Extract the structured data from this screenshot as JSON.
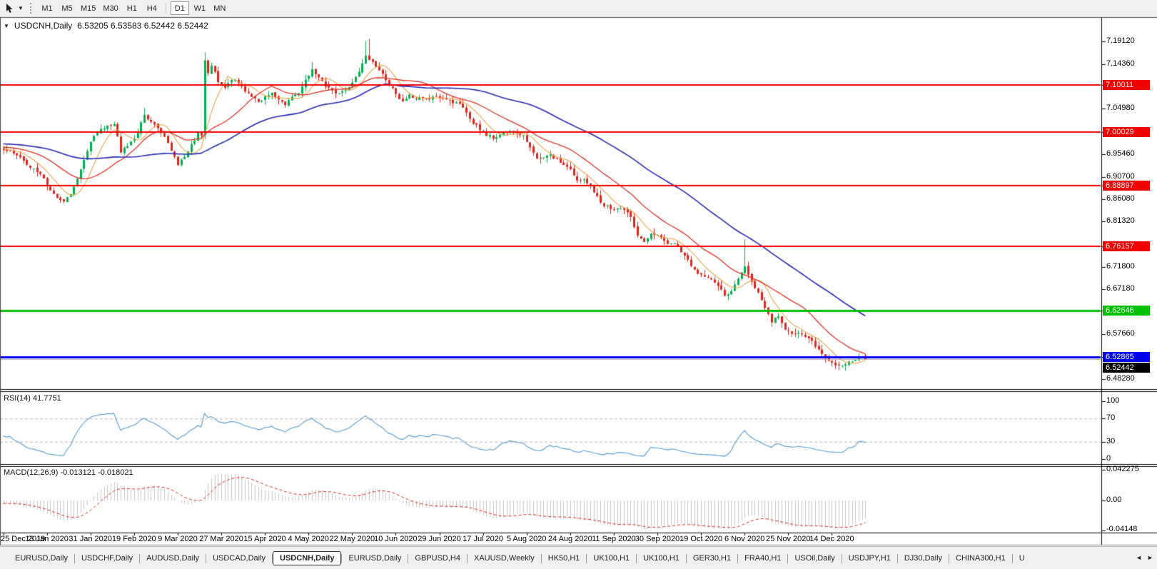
{
  "toolbar": {
    "dropdown_glyph": "▼",
    "timeframes": [
      "M1",
      "M5",
      "M15",
      "M30",
      "H1",
      "H4",
      "D1",
      "W1",
      "MN"
    ],
    "active_timeframe": "D1",
    "separator_after": "H4"
  },
  "chart": {
    "dropdown_glyph": "▼",
    "title_symbol": "USDCNH,Daily",
    "title_ohlc": "6.53205 6.53583 6.52442 6.52442"
  },
  "chart_data": {
    "type": "candlestick",
    "symbol": "USDCNH",
    "timeframe": "Daily",
    "ohlc_display": {
      "open": "6.53205",
      "high": "6.53583",
      "low": "6.52442",
      "close": "6.52442"
    },
    "price_axis": {
      "ticks": [
        {
          "v": 7.1912,
          "label": "7.19120"
        },
        {
          "v": 7.1436,
          "label": "7.14360"
        },
        {
          "v": 7.0498,
          "label": "7.04980"
        },
        {
          "v": 6.9546,
          "label": "6.95460"
        },
        {
          "v": 6.907,
          "label": "6.90700"
        },
        {
          "v": 6.8608,
          "label": "6.86080"
        },
        {
          "v": 6.8132,
          "label": "6.81320"
        },
        {
          "v": 6.718,
          "label": "6.71800"
        },
        {
          "v": 6.6718,
          "label": "6.67180"
        },
        {
          "v": 6.5766,
          "label": "6.57660"
        },
        {
          "v": 6.4828,
          "label": "6.48280"
        }
      ]
    },
    "hlines": [
      {
        "v": 7.10011,
        "label": "7.10011",
        "color": "#f20000",
        "lw": 2
      },
      {
        "v": 7.00029,
        "label": "7.00029",
        "color": "#f20000",
        "lw": 2
      },
      {
        "v": 6.88897,
        "label": "6.88897",
        "color": "#f20000",
        "lw": 2
      },
      {
        "v": 6.76157,
        "label": "6.76157",
        "color": "#f20000",
        "lw": 2
      },
      {
        "v": 6.62646,
        "label": "6.62646",
        "color": "#00c100",
        "lw": 3
      },
      {
        "v": 6.52865,
        "label": "6.52865",
        "color": "#0000f0",
        "lw": 3
      }
    ],
    "current_price": {
      "v": 6.52442,
      "label": "6.52442",
      "line_color": "#b4b4b4",
      "bg": "#000000"
    },
    "last_candle": {
      "o": 6.53205,
      "h": 6.53583,
      "l": 6.52442,
      "c": 6.52442
    },
    "dates": [
      "25 Dec 2019",
      "13 Jan 2020",
      "31 Jan 2020",
      "19 Feb 2020",
      "9 Mar 2020",
      "27 Mar 2020",
      "15 Apr 2020",
      "4 May 2020",
      "22 May 2020",
      "10 Jun 2020",
      "29 Jun 2020",
      "17 Jul 2020",
      "5 Aug 2020",
      "24 Aug 2020",
      "11 Sep 2020",
      "30 Sep 2020",
      "19 Oct 2020",
      "6 Nov 2020",
      "25 Nov 2020",
      "14 Dec 2020"
    ],
    "anchors": [
      [
        0,
        6.966
      ],
      [
        3,
        6.958
      ],
      [
        6,
        6.94
      ],
      [
        9,
        6.922
      ],
      [
        12,
        6.9
      ],
      [
        15,
        6.868
      ],
      [
        18,
        6.85
      ],
      [
        20,
        6.872
      ],
      [
        22,
        6.908
      ],
      [
        24,
        6.942
      ],
      [
        26,
        6.98
      ],
      [
        28,
        6.996
      ],
      [
        31,
        7.012
      ],
      [
        33,
        7.018
      ],
      [
        35,
        6.96
      ],
      [
        38,
        6.976
      ],
      [
        40,
        7.0
      ],
      [
        42,
        7.04
      ],
      [
        44,
        7.028
      ],
      [
        46,
        7.012
      ],
      [
        48,
        6.996
      ],
      [
        50,
        6.966
      ],
      [
        52,
        6.934
      ],
      [
        54,
        6.946
      ],
      [
        56,
        6.972
      ],
      [
        58,
        7.0
      ],
      [
        59,
        6.995
      ],
      [
        60,
        7.148
      ],
      [
        61,
        7.12
      ],
      [
        62,
        7.142
      ],
      [
        64,
        7.108
      ],
      [
        66,
        7.092
      ],
      [
        68,
        7.112
      ],
      [
        70,
        7.1
      ],
      [
        72,
        7.082
      ],
      [
        74,
        7.07
      ],
      [
        76,
        7.062
      ],
      [
        78,
        7.072
      ],
      [
        80,
        7.08
      ],
      [
        82,
        7.072
      ],
      [
        84,
        7.064
      ],
      [
        86,
        7.072
      ],
      [
        88,
        7.082
      ],
      [
        90,
        7.108
      ],
      [
        92,
        7.128
      ],
      [
        94,
        7.12
      ],
      [
        96,
        7.1
      ],
      [
        98,
        7.088
      ],
      [
        100,
        7.082
      ],
      [
        102,
        7.094
      ],
      [
        104,
        7.104
      ],
      [
        106,
        7.128
      ],
      [
        108,
        7.162
      ],
      [
        109,
        7.152
      ],
      [
        111,
        7.138
      ],
      [
        113,
        7.125
      ],
      [
        115,
        7.094
      ],
      [
        117,
        7.08
      ],
      [
        119,
        7.066
      ],
      [
        121,
        7.08
      ],
      [
        123,
        7.075
      ],
      [
        125,
        7.07
      ],
      [
        127,
        7.066
      ],
      [
        129,
        7.075
      ],
      [
        131,
        7.078
      ],
      [
        133,
        7.07
      ],
      [
        135,
        7.062
      ],
      [
        137,
        7.052
      ],
      [
        139,
        7.032
      ],
      [
        141,
        7.016
      ],
      [
        143,
        7.002
      ],
      [
        145,
        6.994
      ],
      [
        147,
        6.988
      ],
      [
        149,
        6.992
      ],
      [
        151,
        6.999
      ],
      [
        153,
        7.003
      ],
      [
        155,
        6.996
      ],
      [
        157,
        6.975
      ],
      [
        159,
        6.95
      ],
      [
        161,
        6.954
      ],
      [
        163,
        6.95
      ],
      [
        165,
        6.944
      ],
      [
        167,
        6.93
      ],
      [
        169,
        6.918
      ],
      [
        171,
        6.905
      ],
      [
        173,
        6.898
      ],
      [
        175,
        6.89
      ],
      [
        177,
        6.868
      ],
      [
        179,
        6.846
      ],
      [
        181,
        6.84
      ],
      [
        183,
        6.844
      ],
      [
        185,
        6.832
      ],
      [
        187,
        6.82
      ],
      [
        189,
        6.78
      ],
      [
        191,
        6.772
      ],
      [
        193,
        6.786
      ],
      [
        195,
        6.79
      ],
      [
        197,
        6.78
      ],
      [
        199,
        6.768
      ],
      [
        201,
        6.758
      ],
      [
        203,
        6.74
      ],
      [
        205,
        6.722
      ],
      [
        207,
        6.704
      ],
      [
        209,
        6.696
      ],
      [
        211,
        6.686
      ],
      [
        213,
        6.672
      ],
      [
        215,
        6.656
      ],
      [
        217,
        6.662
      ],
      [
        219,
        6.692
      ],
      [
        221,
        6.712
      ],
      [
        223,
        6.68
      ],
      [
        225,
        6.66
      ],
      [
        227,
        6.63
      ],
      [
        229,
        6.604
      ],
      [
        231,
        6.614
      ],
      [
        233,
        6.59
      ],
      [
        235,
        6.574
      ],
      [
        237,
        6.582
      ],
      [
        239,
        6.576
      ],
      [
        241,
        6.57
      ],
      [
        243,
        6.548
      ],
      [
        245,
        6.525
      ],
      [
        247,
        6.512
      ],
      [
        249,
        6.508
      ],
      [
        251,
        6.516
      ],
      [
        253,
        6.515
      ],
      [
        255,
        6.527
      ],
      [
        256,
        6.531
      ],
      [
        257,
        6.5244
      ]
    ],
    "spikes": [
      [
        42,
        7.052
      ],
      [
        60,
        7.168
      ],
      [
        92,
        7.148
      ],
      [
        108,
        7.192
      ],
      [
        109,
        7.1964
      ],
      [
        221,
        6.776
      ]
    ],
    "moving_averages": [
      {
        "period": 8,
        "color": "#f0a24a",
        "lw": 1.1
      },
      {
        "period": 21,
        "color": "#e03224",
        "lw": 1.3
      },
      {
        "period": 55,
        "color": "#2727b8",
        "lw": 1.6
      }
    ],
    "rsi": {
      "label": "RSI(14) 41.7751",
      "period": 14,
      "value": 41.7751,
      "line_color": "#569bd2",
      "level_color": "#b8b8b8",
      "levels": [
        {
          "v": 100,
          "label": "100"
        },
        {
          "v": 70,
          "label": "70"
        },
        {
          "v": 30,
          "label": "30"
        },
        {
          "v": 0,
          "label": "0"
        }
      ]
    },
    "macd": {
      "label": "MACD(12,26,9) -0.013121 -0.018021",
      "fast": 12,
      "slow": 26,
      "signal_period": 9,
      "macd_value": -0.013121,
      "signal_value": -0.018021,
      "hist_color": "#c6c6c6",
      "signal_color": "#e02020",
      "ticks": [
        {
          "v": 0.042275,
          "label": "0.042275"
        },
        {
          "v": 0,
          "label": "0.00"
        },
        {
          "v": -0.04148,
          "label": "-0.04148"
        }
      ]
    },
    "colors": {
      "up": "#00b14e",
      "down": "#e1251b"
    }
  },
  "tabs": {
    "items": [
      "EURUSD,Daily",
      "USDCHF,Daily",
      "AUDUSD,Daily",
      "USDCAD,Daily",
      "USDCNH,Daily",
      "EURUSD,Daily",
      "GBPUSD,H4",
      "XAUUSD,Weekly",
      "HK50,H1",
      "UK100,H1",
      "UK100,H1",
      "GER30,H1",
      "FRA40,H1",
      "USOil,Daily",
      "USDJPY,H1",
      "DJ30,Daily",
      "CHINA300,H1",
      "U"
    ],
    "active_index": 4,
    "scroll_left": "◄",
    "scroll_right": "►"
  }
}
